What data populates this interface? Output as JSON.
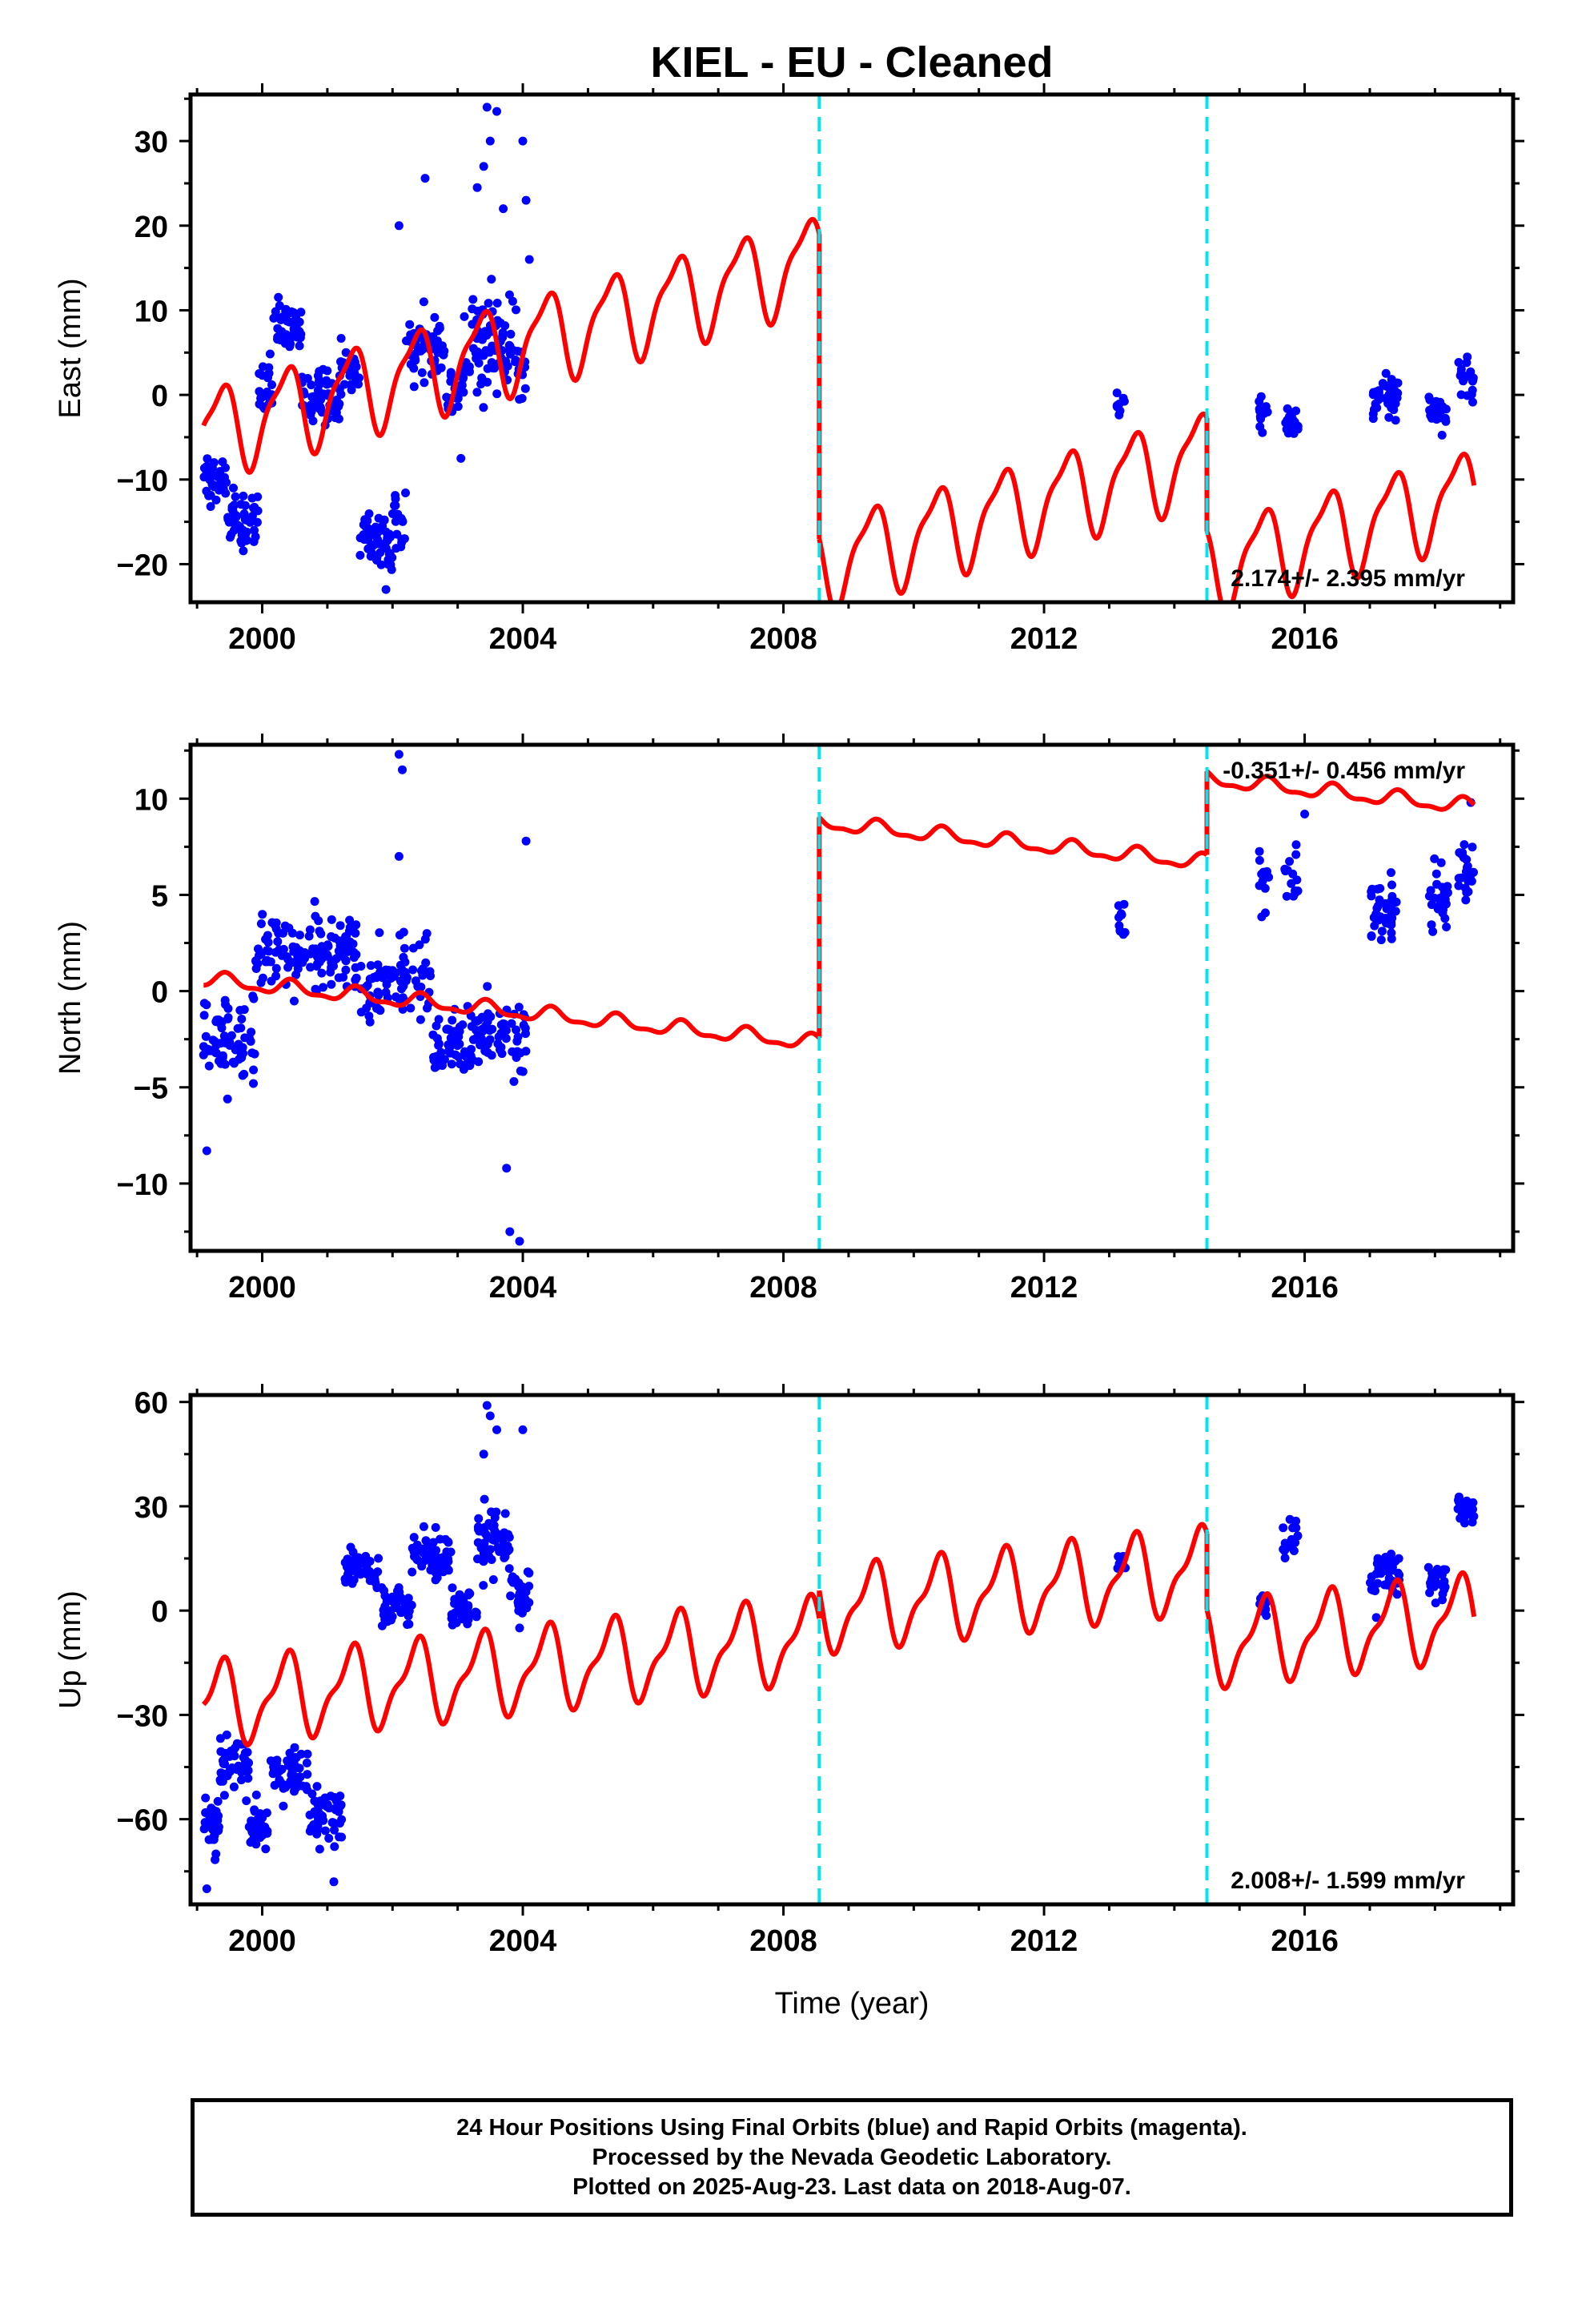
{
  "figure": {
    "title": "KIEL  - EU - Cleaned",
    "xlabel": "Time (year)"
  },
  "colors": {
    "data": "#0000ff",
    "model": "#ff0000",
    "breaks": "#00e5ee",
    "frame": "#000000"
  },
  "chart_data": [
    {
      "type": "scatter",
      "component": "east",
      "ylabel": "East (mm)",
      "xlim": [
        1998.9,
        2019.2
      ],
      "ylim": [
        -24.5,
        35.5
      ],
      "xticks": [
        2000,
        2004,
        2008,
        2012,
        2016
      ],
      "yticks": [
        -20,
        -10,
        0,
        10,
        20,
        30
      ],
      "rate_label": "2.174+/- 2.395 mm/yr",
      "rate_position": "bottom-right",
      "breaks": [
        2008.55,
        2014.5
      ],
      "model_segments": [
        {
          "start": 1999.1,
          "end": 2008.55,
          "offset": -4.5,
          "rate": 2.174,
          "amp1": 5.0,
          "phase1": 0.1,
          "amp2": 1.5,
          "phase2": 0.4
        },
        {
          "start": 2008.55,
          "end": 2014.5,
          "offset": -20.0,
          "rate": 2.174,
          "amp1": 5.0,
          "phase1": 0.1,
          "amp2": 1.5,
          "phase2": 0.4
        },
        {
          "start": 2014.5,
          "end": 2018.6,
          "offset": -20.5,
          "rate": 2.174,
          "amp1": 5.0,
          "phase1": 0.1,
          "amp2": 1.5,
          "phase2": 0.4
        }
      ],
      "data_clusters": [
        {
          "start": 1999.1,
          "end": 1999.45,
          "center": -10,
          "spread": 3,
          "n": 40
        },
        {
          "start": 1999.45,
          "end": 1999.95,
          "center": -15,
          "spread": 3.5,
          "n": 50
        },
        {
          "start": 1999.95,
          "end": 2000.15,
          "center": 0,
          "spread": 4,
          "n": 20
        },
        {
          "start": 2000.15,
          "end": 2000.6,
          "center": 8,
          "spread": 3,
          "n": 45
        },
        {
          "start": 2000.6,
          "end": 2001.2,
          "center": 0,
          "spread": 3,
          "n": 60
        },
        {
          "start": 2001.2,
          "end": 2001.5,
          "center": 3,
          "spread": 3,
          "n": 25
        },
        {
          "start": 2001.5,
          "end": 2002.0,
          "center": -17,
          "spread": 3.2,
          "n": 55
        },
        {
          "start": 2002.0,
          "end": 2002.2,
          "center": -15,
          "spread": 3,
          "n": 20
        },
        {
          "start": 2002.2,
          "end": 2002.8,
          "center": 6,
          "spread": 3.5,
          "n": 55
        },
        {
          "start": 2002.8,
          "end": 2003.1,
          "center": 0,
          "spread": 3,
          "n": 25
        },
        {
          "start": 2003.1,
          "end": 2003.9,
          "center": 6,
          "spread": 6,
          "n": 80
        },
        {
          "start": 2003.9,
          "end": 2004.05,
          "center": 2,
          "spread": 3,
          "n": 12
        },
        {
          "start": 2013.1,
          "end": 2013.25,
          "center": -1,
          "spread": 1.5,
          "n": 10
        },
        {
          "start": 2015.3,
          "end": 2015.45,
          "center": -2,
          "spread": 2,
          "n": 12
        },
        {
          "start": 2015.7,
          "end": 2015.9,
          "center": -3,
          "spread": 2.5,
          "n": 15
        },
        {
          "start": 2017.05,
          "end": 2017.45,
          "center": 0,
          "spread": 2.5,
          "n": 35
        },
        {
          "start": 2017.9,
          "end": 2018.2,
          "center": -2,
          "spread": 2,
          "n": 25
        },
        {
          "start": 2018.35,
          "end": 2018.6,
          "center": 2,
          "spread": 2,
          "n": 20
        }
      ],
      "outliers": [
        [
          2003.45,
          34
        ],
        [
          2003.6,
          33.5
        ],
        [
          2003.5,
          30
        ],
        [
          2003.4,
          27
        ],
        [
          2003.7,
          22
        ],
        [
          2004.0,
          30
        ],
        [
          2002.5,
          25.6
        ],
        [
          2003.3,
          24.5
        ],
        [
          2004.05,
          23
        ],
        [
          2002.1,
          20
        ],
        [
          2004.1,
          16
        ],
        [
          2003.05,
          -7.5
        ],
        [
          2001.9,
          -23
        ]
      ]
    },
    {
      "type": "scatter",
      "component": "north",
      "ylabel": "North (mm)",
      "xlim": [
        1998.9,
        2019.2
      ],
      "ylim": [
        -13.5,
        12.8
      ],
      "xticks": [
        2000,
        2004,
        2008,
        2012,
        2016
      ],
      "yticks": [
        -10,
        -5,
        0,
        5,
        10
      ],
      "rate_label": "-0.351+/- 0.456 mm/yr",
      "rate_position": "top-right",
      "breaks": [
        2008.55,
        2014.5
      ],
      "model_segments": [
        {
          "start": 1999.1,
          "end": 2008.55,
          "offset": 0.6,
          "rate": -0.351,
          "amp1": 0.35,
          "phase1": 0.2,
          "amp2": 0.15,
          "phase2": 0.3
        },
        {
          "start": 2008.55,
          "end": 2014.5,
          "offset": 8.75,
          "rate": -0.351,
          "amp1": 0.35,
          "phase1": 0.2,
          "amp2": 0.15,
          "phase2": 0.3
        },
        {
          "start": 2014.5,
          "end": 2018.6,
          "offset": 11.0,
          "rate": -0.351,
          "amp1": 0.35,
          "phase1": 0.2,
          "amp2": 0.15,
          "phase2": 0.3
        }
      ],
      "data_clusters": [
        {
          "start": 1999.1,
          "end": 1999.9,
          "center": -2.5,
          "spread": 2.2,
          "n": 70
        },
        {
          "start": 1999.9,
          "end": 2000.2,
          "center": 2,
          "spread": 2,
          "n": 25
        },
        {
          "start": 2000.2,
          "end": 2001.5,
          "center": 2,
          "spread": 1.8,
          "n": 110
        },
        {
          "start": 2001.5,
          "end": 2002.6,
          "center": 0.5,
          "spread": 2,
          "n": 80
        },
        {
          "start": 2002.6,
          "end": 2004.05,
          "center": -2.5,
          "spread": 1.8,
          "n": 110
        },
        {
          "start": 2013.1,
          "end": 2013.25,
          "center": 3.5,
          "spread": 1,
          "n": 10
        },
        {
          "start": 2015.3,
          "end": 2015.45,
          "center": 6,
          "spread": 1.5,
          "n": 12
        },
        {
          "start": 2015.65,
          "end": 2015.9,
          "center": 6,
          "spread": 1.8,
          "n": 15
        },
        {
          "start": 2017.0,
          "end": 2017.45,
          "center": 4,
          "spread": 1.8,
          "n": 40
        },
        {
          "start": 2017.9,
          "end": 2018.2,
          "center": 5,
          "spread": 1.5,
          "n": 25
        },
        {
          "start": 2018.35,
          "end": 2018.6,
          "center": 6.5,
          "spread": 1.6,
          "n": 22
        }
      ],
      "outliers": [
        [
          2002.1,
          12.3
        ],
        [
          2002.15,
          11.5
        ],
        [
          2004.05,
          7.8
        ],
        [
          2002.1,
          7
        ],
        [
          1999.15,
          -8.3
        ],
        [
          2003.75,
          -9.2
        ],
        [
          2003.8,
          -12.5
        ],
        [
          2003.95,
          -13
        ],
        [
          2016.0,
          9.2
        ],
        [
          2018.55,
          9.8
        ]
      ]
    },
    {
      "type": "scatter",
      "component": "up",
      "ylabel": "Up (mm)",
      "xlim": [
        1998.9,
        2019.2
      ],
      "ylim": [
        -84.5,
        62
      ],
      "xticks": [
        2000,
        2004,
        2008,
        2012,
        2016
      ],
      "yticks": [
        -60,
        -30,
        0,
        30,
        60
      ],
      "rate_label": "2.008+/- 1.599 mm/yr",
      "rate_position": "bottom-right",
      "breaks": [
        2008.55,
        2014.5
      ],
      "model_segments": [
        {
          "start": 1999.1,
          "end": 2008.55,
          "offset": -27.0,
          "rate": 2.008,
          "amp1": 11.0,
          "phase1": 0.1,
          "amp2": 4.0,
          "phase2": 0.35
        },
        {
          "start": 2008.55,
          "end": 2014.5,
          "offset": 0.0,
          "rate": 2.008,
          "amp1": 11.0,
          "phase1": 0.1,
          "amp2": 4.0,
          "phase2": 0.35
        },
        {
          "start": 2014.5,
          "end": 2018.6,
          "offset": -10.0,
          "rate": 2.008,
          "amp1": 11.0,
          "phase1": 0.1,
          "amp2": 4.0,
          "phase2": 0.35
        }
      ],
      "data_clusters": [
        {
          "start": 1999.1,
          "end": 1999.35,
          "center": -62,
          "spread": 7,
          "n": 35
        },
        {
          "start": 1999.35,
          "end": 1999.8,
          "center": -44,
          "spread": 7,
          "n": 50
        },
        {
          "start": 1999.8,
          "end": 2000.1,
          "center": -62,
          "spread": 6,
          "n": 30
        },
        {
          "start": 2000.1,
          "end": 2000.7,
          "center": -47,
          "spread": 6,
          "n": 55
        },
        {
          "start": 2000.7,
          "end": 2001.25,
          "center": -58,
          "spread": 7,
          "n": 50
        },
        {
          "start": 2001.25,
          "end": 2001.8,
          "center": 12,
          "spread": 5,
          "n": 45
        },
        {
          "start": 2001.8,
          "end": 2002.3,
          "center": 2,
          "spread": 5,
          "n": 40
        },
        {
          "start": 2002.3,
          "end": 2002.9,
          "center": 15,
          "spread": 6,
          "n": 55
        },
        {
          "start": 2002.9,
          "end": 2003.3,
          "center": 0,
          "spread": 5,
          "n": 35
        },
        {
          "start": 2003.3,
          "end": 2003.8,
          "center": 20,
          "spread": 8,
          "n": 60
        },
        {
          "start": 2003.8,
          "end": 2004.1,
          "center": 5,
          "spread": 6,
          "n": 28
        },
        {
          "start": 2013.1,
          "end": 2013.25,
          "center": 14,
          "spread": 3,
          "n": 10
        },
        {
          "start": 2015.3,
          "end": 2015.45,
          "center": 2,
          "spread": 3,
          "n": 12
        },
        {
          "start": 2015.65,
          "end": 2015.9,
          "center": 20,
          "spread": 5,
          "n": 15
        },
        {
          "start": 2017.0,
          "end": 2017.45,
          "center": 10,
          "spread": 6,
          "n": 40
        },
        {
          "start": 2017.9,
          "end": 2018.2,
          "center": 8,
          "spread": 6,
          "n": 25
        },
        {
          "start": 2018.35,
          "end": 2018.6,
          "center": 30,
          "spread": 4,
          "n": 22
        }
      ],
      "outliers": [
        [
          2003.45,
          59
        ],
        [
          2003.5,
          56
        ],
        [
          2003.6,
          52
        ],
        [
          2004.0,
          52
        ],
        [
          2003.4,
          45
        ],
        [
          1999.15,
          -80
        ],
        [
          2001.1,
          -78
        ],
        [
          2003.95,
          -5
        ],
        [
          2017.1,
          -2
        ]
      ]
    }
  ],
  "footer": {
    "line1": "24 Hour Positions Using Final Orbits (blue) and Rapid Orbits (magenta).",
    "line2": "Processed by the Nevada Geodetic Laboratory.",
    "line3": "Plotted on 2025-Aug-23. Last data on 2018-Aug-07."
  }
}
